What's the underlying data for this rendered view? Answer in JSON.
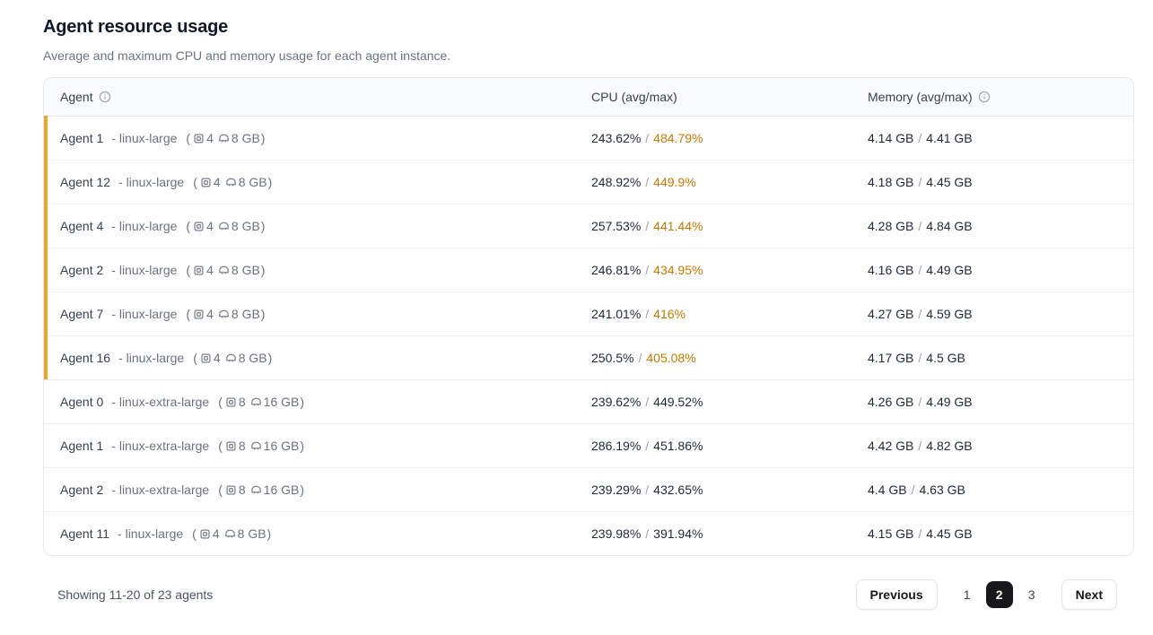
{
  "page": {
    "title": "Agent resource usage",
    "subtitle": "Average and maximum CPU and memory usage for each agent instance."
  },
  "table": {
    "columns": [
      {
        "label": "Agent",
        "info_icon": true
      },
      {
        "label": "CPU (avg/max)",
        "info_icon": false
      },
      {
        "label": "Memory (avg/max)",
        "info_icon": true
      }
    ],
    "type_separator": "-",
    "spec_open": "(",
    "spec_close": ")",
    "value_separator": "/",
    "rows": [
      {
        "name": "Agent 1",
        "machine": "linux-large",
        "cpus": "4",
        "ram": "8 GB",
        "cpu_avg": "243.62%",
        "cpu_max": "484.79%",
        "mem_avg": "4.14 GB",
        "mem_max": "4.41 GB",
        "flagged": true
      },
      {
        "name": "Agent 12",
        "machine": "linux-large",
        "cpus": "4",
        "ram": "8 GB",
        "cpu_avg": "248.92%",
        "cpu_max": "449.9%",
        "mem_avg": "4.18 GB",
        "mem_max": "4.45 GB",
        "flagged": true
      },
      {
        "name": "Agent 4",
        "machine": "linux-large",
        "cpus": "4",
        "ram": "8 GB",
        "cpu_avg": "257.53%",
        "cpu_max": "441.44%",
        "mem_avg": "4.28 GB",
        "mem_max": "4.84 GB",
        "flagged": true
      },
      {
        "name": "Agent 2",
        "machine": "linux-large",
        "cpus": "4",
        "ram": "8 GB",
        "cpu_avg": "246.81%",
        "cpu_max": "434.95%",
        "mem_avg": "4.16 GB",
        "mem_max": "4.49 GB",
        "flagged": true
      },
      {
        "name": "Agent 7",
        "machine": "linux-large",
        "cpus": "4",
        "ram": "8 GB",
        "cpu_avg": "241.01%",
        "cpu_max": "416%",
        "mem_avg": "4.27 GB",
        "mem_max": "4.59 GB",
        "flagged": true
      },
      {
        "name": "Agent 16",
        "machine": "linux-large",
        "cpus": "4",
        "ram": "8 GB",
        "cpu_avg": "250.5%",
        "cpu_max": "405.08%",
        "mem_avg": "4.17 GB",
        "mem_max": "4.5 GB",
        "flagged": true
      },
      {
        "name": "Agent 0",
        "machine": "linux-extra-large",
        "cpus": "8",
        "ram": "16 GB",
        "cpu_avg": "239.62%",
        "cpu_max": "449.52%",
        "mem_avg": "4.26 GB",
        "mem_max": "4.49 GB",
        "flagged": false
      },
      {
        "name": "Agent 1",
        "machine": "linux-extra-large",
        "cpus": "8",
        "ram": "16 GB",
        "cpu_avg": "286.19%",
        "cpu_max": "451.86%",
        "mem_avg": "4.42 GB",
        "mem_max": "4.82 GB",
        "flagged": false
      },
      {
        "name": "Agent 2",
        "machine": "linux-extra-large",
        "cpus": "8",
        "ram": "16 GB",
        "cpu_avg": "239.29%",
        "cpu_max": "432.65%",
        "mem_avg": "4.4 GB",
        "mem_max": "4.63 GB",
        "flagged": false
      },
      {
        "name": "Agent 11",
        "machine": "linux-large",
        "cpus": "4",
        "ram": "8 GB",
        "cpu_avg": "239.98%",
        "cpu_max": "391.94%",
        "mem_avg": "4.15 GB",
        "mem_max": "4.45 GB",
        "flagged": false
      }
    ]
  },
  "footer": {
    "summary": "Showing 11-20 of 23 agents",
    "pagination": {
      "previous_label": "Previous",
      "next_label": "Next",
      "pages": [
        "1",
        "2",
        "3"
      ],
      "active_page": "2"
    }
  },
  "colors": {
    "flag_bar": "#EBA72A",
    "cpu_max_warning": "#C27803",
    "active_page_bg": "#18181B",
    "header_bg": "#F9FAFB"
  }
}
